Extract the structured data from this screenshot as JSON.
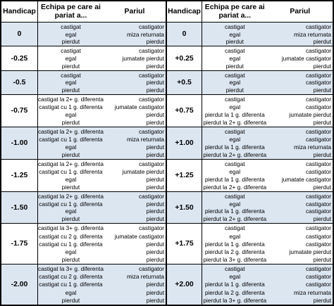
{
  "header": {
    "handicap": "Handicap",
    "team_line1": "Echipa pe care ai",
    "team_line2": "pariat a...",
    "bet": "Pariul"
  },
  "left": [
    {
      "h": "0",
      "a": [
        "castigat",
        "egal",
        "pierdut"
      ],
      "b": [
        "castigator",
        "miza returnata",
        "pierdut"
      ]
    },
    {
      "h": "-0.25",
      "a": [
        "castigat",
        "egal",
        "pierdut"
      ],
      "b": [
        "castigator",
        "jumatate pierdut",
        "pierdut"
      ]
    },
    {
      "h": "-0.5",
      "a": [
        "castigat",
        "egal",
        "pierdut"
      ],
      "b": [
        "castigator",
        "pierdut",
        "pierdut"
      ]
    },
    {
      "h": "-0.75",
      "a": [
        "castigat la 2+ g. diferenta",
        "castigat cu 1 g. diferenta",
        "egal",
        "pierdut"
      ],
      "b": [
        "castigator",
        "jumatate castigator",
        "pierdut",
        "pierdut"
      ]
    },
    {
      "h": "-1.00",
      "a": [
        "castigat la 2+ g. diferenta",
        "castigat cu 1 g. diferenta",
        "egal",
        "pierdut"
      ],
      "b": [
        "castigator",
        "miza returnata",
        "pierdut",
        "pierdut"
      ]
    },
    {
      "h": "-1.25",
      "a": [
        "castigat la 2+ g. diferenta",
        "castigat cu 1 g. diferenta",
        "egal",
        "pierdut"
      ],
      "b": [
        "castigator",
        "jumatate pierdut",
        "pierdut",
        "pierdut"
      ]
    },
    {
      "h": "-1.50",
      "a": [
        "castigat la 2+ g. diferenta",
        "castigat cu 1 g. diferenta",
        "egal",
        "pierdut"
      ],
      "b": [
        "castigator",
        "pierdut",
        "pierdut",
        "pierdut"
      ]
    },
    {
      "h": "-1.75",
      "a": [
        "castigat la 3+ g. diferenta",
        "castigat cu 2 g. diferenta",
        "castigat cu 1 g. diferenta",
        "egal",
        "pierdut"
      ],
      "b": [
        "castigator",
        "jumatate castigator",
        "pierdut",
        "pierdut",
        "pierdut"
      ]
    },
    {
      "h": "-2.00",
      "a": [
        "castigat la 3+ g. diferenta",
        "castigat cu 2 g. diferenta",
        "castigat cu 1 g. diferenta",
        "egal",
        "pierdut"
      ],
      "b": [
        "castigator",
        "miza returnata",
        "pierdut",
        "pierdut",
        "pierdut"
      ]
    }
  ],
  "right": [
    {
      "h": "0",
      "a": [
        "castigat",
        "egal",
        "pierdut"
      ],
      "b": [
        "castigator",
        "miza returnata",
        "pierdut"
      ]
    },
    {
      "h": "+0.25",
      "a": [
        "castigat",
        "egal",
        "pierdut"
      ],
      "b": [
        "castigator",
        "jumatate castigator",
        "pierdut"
      ]
    },
    {
      "h": "+0.5",
      "a": [
        "castigat",
        "egal",
        "pierdut"
      ],
      "b": [
        "castigator",
        "castigator",
        "pierdut"
      ]
    },
    {
      "h": "+0.75",
      "a": [
        "castigat",
        "egal",
        "pierdut la 1 g. diferenta",
        "pierdut la 2+ g. diferenta"
      ],
      "b": [
        "castigator",
        "castigator",
        "jumatate pierdut",
        "pierdut"
      ]
    },
    {
      "h": "+1.00",
      "a": [
        "castigat",
        "egal",
        "pierdut la 1 g. diferenta",
        "pierdut la 2+ g. diferenta"
      ],
      "b": [
        "castigator",
        "castigator",
        "miza returnata",
        "pierdut"
      ]
    },
    {
      "h": "+1.25",
      "a": [
        "castigat",
        "egal",
        "pierdut la 1 g. diferenta",
        "pierdut la 2+ g. diferenta"
      ],
      "b": [
        "castigator",
        "castigator",
        "jumatate castigator",
        "pierdut"
      ]
    },
    {
      "h": "+1.50",
      "a": [
        "castigat",
        "egal",
        "pierdut la 1 g. diferenta",
        "pierdut la 2+ g. diferenta"
      ],
      "b": [
        "castigator",
        "castigator",
        "castigator",
        "pierdut"
      ]
    },
    {
      "h": "+1.75",
      "a": [
        "castigat",
        "egal",
        "pierdut la 1 g. diferenta",
        "pierdut la 2 g. diferenta",
        "pierdut la 3+ g. diferenta"
      ],
      "b": [
        "castigator",
        "castigator",
        "castigator",
        "jumatate pierdut",
        "pierdut"
      ]
    },
    {
      "h": "+2.00",
      "a": [
        "castigat",
        "egal",
        "pierdut la 1 g. diferenta",
        "pierdut la 2 g. diferenta",
        "pierdut la 3+ g. diferenta"
      ],
      "b": [
        "castigator",
        "castigator",
        "castigator",
        "miza returnata",
        "pierdut"
      ]
    }
  ],
  "colors": {
    "blue_row": "#dce6f1",
    "white_row": "#ffffff",
    "border": "#000000"
  }
}
